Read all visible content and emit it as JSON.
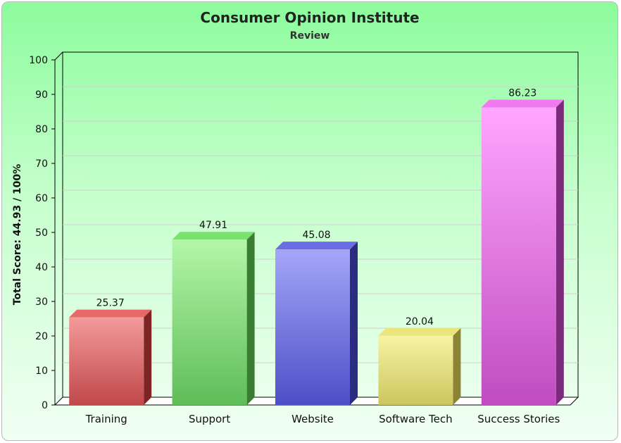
{
  "chart_data": {
    "type": "bar",
    "title": "Consumer Opinion Institute",
    "subtitle": "Review",
    "ylabel": "Total Score: 44.93 / 100%",
    "xlabel": "",
    "categories": [
      "Training",
      "Support",
      "Website",
      "Software Tech",
      "Success Stories"
    ],
    "values": [
      25.37,
      47.91,
      45.08,
      20.04,
      86.23
    ],
    "value_labels": [
      "25.37",
      "47.91",
      "45.08",
      "20.04",
      "86.23"
    ],
    "ylim": [
      0,
      100
    ],
    "yticks": [
      0,
      10,
      20,
      30,
      40,
      50,
      60,
      70,
      80,
      90,
      100
    ],
    "ytick_labels": [
      "0",
      "10",
      "20",
      "30",
      "40",
      "50",
      "60",
      "70",
      "80",
      "90",
      "100"
    ],
    "grid": true,
    "style": "3d-bar",
    "colors": [
      {
        "top": "#f39a9a",
        "bottom": "#c0484a",
        "side": "#7e2424",
        "cap": "#e86868"
      },
      {
        "top": "#b3f6a8",
        "bottom": "#5fbd58",
        "side": "#3a7d32",
        "cap": "#78e26c"
      },
      {
        "top": "#a5a6f8",
        "bottom": "#4c4fc6",
        "side": "#2a2c80",
        "cap": "#6a6de6"
      },
      {
        "top": "#f6f3a4",
        "bottom": "#ccc65e",
        "side": "#8a8434",
        "cap": "#ece67a"
      },
      {
        "top": "#ffa6ff",
        "bottom": "#c04cc0",
        "side": "#7c2a7c",
        "cap": "#f07af0"
      }
    ],
    "background": {
      "top": "#8dfc9d",
      "bottom": "#f2fff4"
    }
  }
}
